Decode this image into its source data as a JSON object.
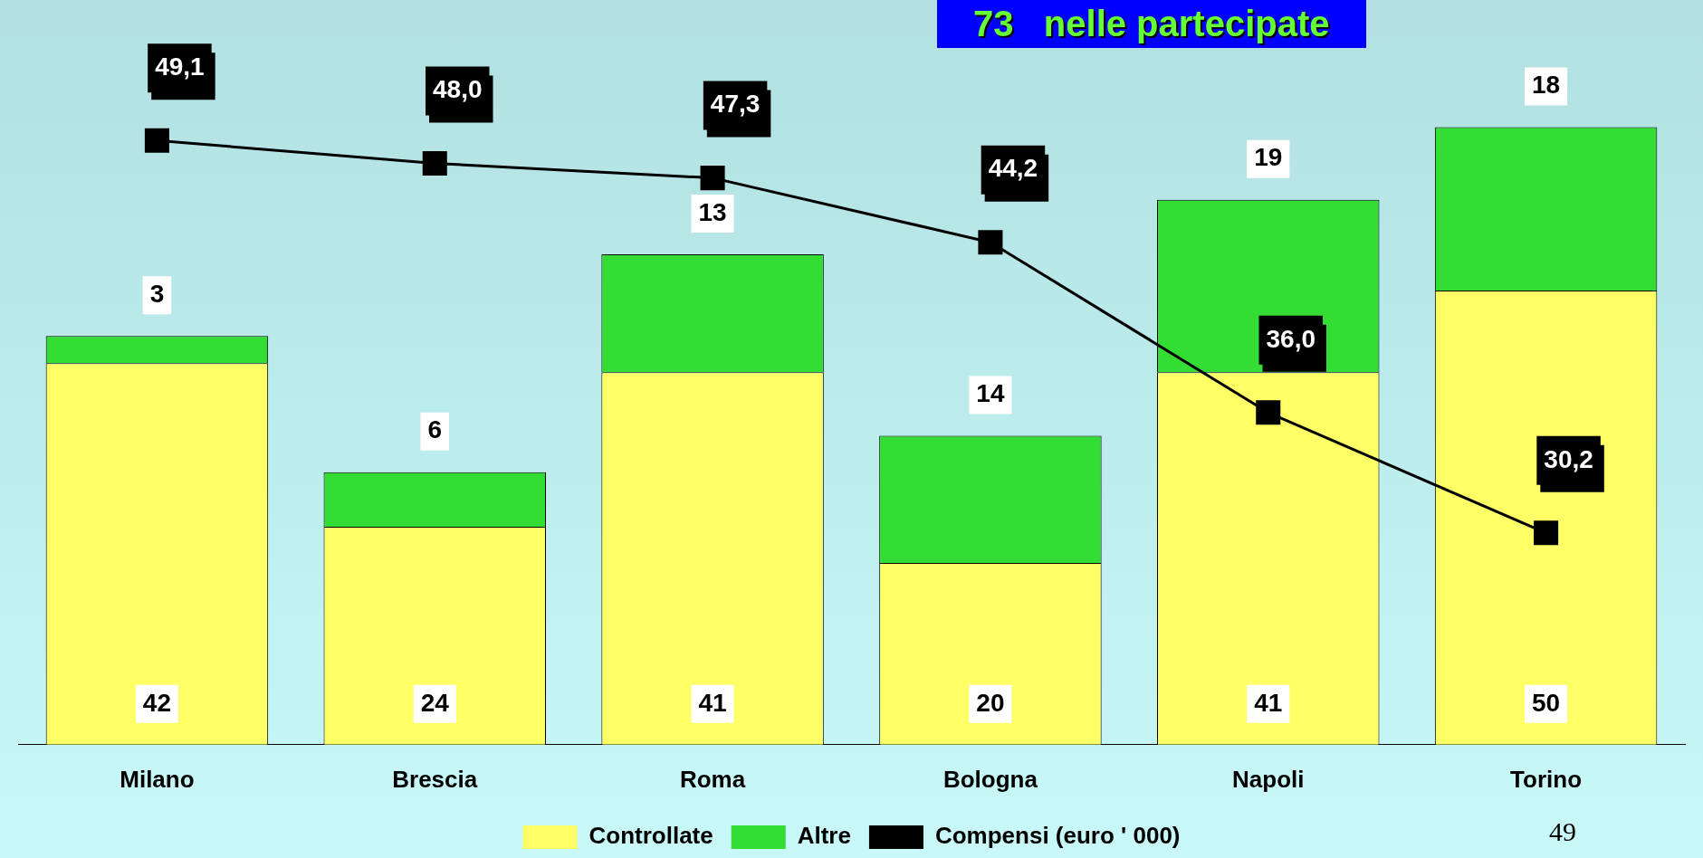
{
  "chart_data": {
    "type": "bar",
    "title": "73   nelle partecipate",
    "categories": [
      "Milano",
      "Brescia",
      "Roma",
      "Bologna",
      "Napoli",
      "Torino"
    ],
    "stacked": true,
    "data_labels": true,
    "grid": false,
    "legend": "bottom",
    "tick_labels": "x",
    "series": [
      {
        "name": "Controllate",
        "color": "#ffff66",
        "values": [
          42,
          24,
          41,
          20,
          41,
          50
        ]
      },
      {
        "name": "Altre",
        "color": "#33dd33",
        "values": [
          3,
          6,
          13,
          14,
          19,
          18
        ]
      },
      {
        "name": "Compensi (euro ' 000)",
        "type": "line",
        "axis": "y2",
        "color": "#000000",
        "marker": "square",
        "line_style": "solid",
        "values": [
          49.1,
          48.0,
          47.3,
          44.2,
          36.0,
          30.2
        ],
        "value_labels": [
          "49,1",
          "48,0",
          "47,3",
          "44,2",
          "36,0",
          "30,2"
        ]
      }
    ],
    "annotations": [
      "49"
    ]
  }
}
